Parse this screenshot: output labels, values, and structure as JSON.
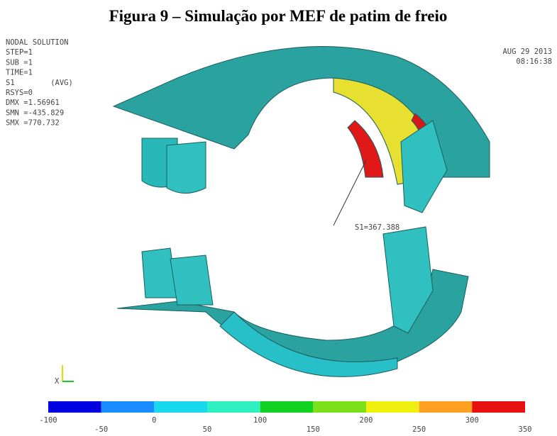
{
  "caption": "Figura 9 – Simulação por MEF de patim de freio",
  "info": [
    "NODAL SOLUTION",
    "STEP=1",
    "SUB =1",
    "TIME=1",
    "S1        (AVG)",
    "RSYS=0",
    "DMX =1.56961",
    "SMN =-435.829",
    "SMX =770.732"
  ],
  "date": "AUG 29 2013",
  "time": "08:16:38",
  "annotation": "S1=367.388",
  "axis_label": "X",
  "legend": {
    "ticks": [
      -100,
      -50,
      0,
      50,
      100,
      150,
      200,
      250,
      300,
      350
    ],
    "colors": [
      "#0000e0",
      "#1a8cff",
      "#19d8f0",
      "#2ef0c0",
      "#10d020",
      "#7ee01a",
      "#f0f010",
      "#ffa020",
      "#e81010"
    ]
  }
}
